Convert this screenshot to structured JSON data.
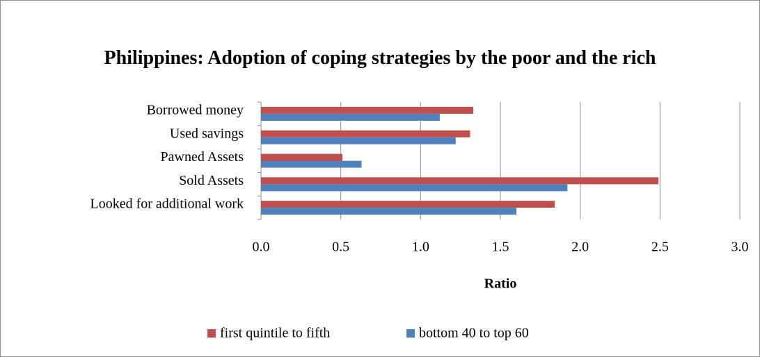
{
  "chart_data": {
    "type": "hbar",
    "title": "Philippines: Adoption of coping strategies by the poor and the rich",
    "x_label": "Ratio",
    "categories": [
      "Borrowed money",
      "Used savings",
      "Pawned Assets",
      "Sold Assets",
      "Looked for additional work"
    ],
    "series": [
      {
        "name": "first quintile to fifth",
        "color": "#c0504d",
        "values": [
          1.33,
          1.31,
          0.51,
          2.49,
          1.84
        ]
      },
      {
        "name": "bottom 40 to top 60",
        "color": "#4f81bd",
        "values": [
          1.12,
          1.22,
          0.63,
          1.92,
          1.6
        ]
      }
    ],
    "xlim": [
      0,
      3
    ],
    "xticks": [
      {
        "value": 0,
        "label": "0.0"
      },
      0.5,
      {
        "value": 1,
        "label": "1.0"
      },
      1.5,
      {
        "value": 2,
        "label": "2.0"
      },
      2.5,
      {
        "value": 3,
        "label": "3.0"
      }
    ],
    "grid": true,
    "legend": "bottom"
  }
}
